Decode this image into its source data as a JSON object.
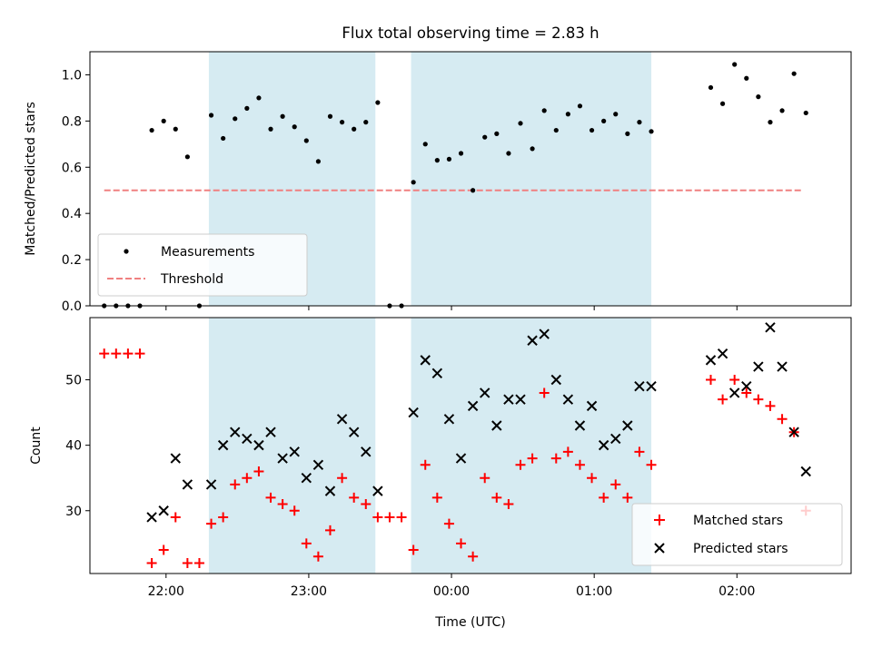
{
  "title": "Flux total observing time = 2.83 h",
  "colors": {
    "shade": "#add8e6",
    "measurement": "#000000",
    "threshold": "#f08080",
    "matched": "#ff0000",
    "predicted": "#000000"
  },
  "chart_data": [
    {
      "type": "scatter",
      "name": "ratio-panel",
      "ylabel": "Matched/Predicted stars",
      "xlim": [
        "21:28",
        "02:48"
      ],
      "ylim": [
        0,
        1.1
      ],
      "yticks": [
        "0.0",
        "0.2",
        "0.4",
        "0.6",
        "0.8",
        "1.0"
      ],
      "legend_position": "lower-left",
      "shaded_intervals": [
        [
          "22:18",
          "23:28"
        ],
        [
          "23:43",
          "01:24"
        ]
      ],
      "threshold": {
        "name": "Threshold",
        "value": 0.5,
        "x_range": [
          "21:34",
          "02:28"
        ]
      },
      "series": [
        {
          "name": "Measurements",
          "points": [
            [
              "21:34",
              0
            ],
            [
              "21:39",
              0
            ],
            [
              "21:44",
              0
            ],
            [
              "21:49",
              0
            ],
            [
              "21:54",
              0.76
            ],
            [
              "21:59",
              0.8
            ],
            [
              "22:04",
              0.765
            ],
            [
              "22:09",
              0.645
            ],
            [
              "22:14",
              0
            ],
            [
              "22:19",
              0.825
            ],
            [
              "22:24",
              0.725
            ],
            [
              "22:29",
              0.81
            ],
            [
              "22:34",
              0.855
            ],
            [
              "22:39",
              0.9
            ],
            [
              "22:44",
              0.765
            ],
            [
              "22:49",
              0.82
            ],
            [
              "22:54",
              0.775
            ],
            [
              "22:59",
              0.715
            ],
            [
              "23:04",
              0.625
            ],
            [
              "23:09",
              0.82
            ],
            [
              "23:14",
              0.795
            ],
            [
              "23:19",
              0.765
            ],
            [
              "23:24",
              0.795
            ],
            [
              "23:29",
              0.88
            ],
            [
              "23:34",
              0
            ],
            [
              "23:39",
              0
            ],
            [
              "23:44",
              0.535
            ],
            [
              "23:49",
              0.7
            ],
            [
              "23:54",
              0.63
            ],
            [
              "23:59",
              0.635
            ],
            [
              "00:04",
              0.66
            ],
            [
              "00:09",
              0.5
            ],
            [
              "00:14",
              0.73
            ],
            [
              "00:19",
              0.745
            ],
            [
              "00:24",
              0.66
            ],
            [
              "00:29",
              0.79
            ],
            [
              "00:34",
              0.68
            ],
            [
              "00:39",
              0.845
            ],
            [
              "00:44",
              0.76
            ],
            [
              "00:49",
              0.83
            ],
            [
              "00:54",
              0.865
            ],
            [
              "00:59",
              0.76
            ],
            [
              "01:04",
              0.8
            ],
            [
              "01:09",
              0.83
            ],
            [
              "01:14",
              0.745
            ],
            [
              "01:19",
              0.795
            ],
            [
              "01:24",
              0.755
            ],
            [
              "01:49",
              0.945
            ],
            [
              "01:54",
              0.875
            ],
            [
              "01:59",
              1.045
            ],
            [
              "02:04",
              0.985
            ],
            [
              "02:09",
              0.905
            ],
            [
              "02:14",
              0.795
            ],
            [
              "02:19",
              0.845
            ],
            [
              "02:24",
              1.005
            ],
            [
              "02:29",
              0.835
            ]
          ]
        }
      ]
    },
    {
      "type": "scatter",
      "name": "count-panel",
      "xlabel": "Time (UTC)",
      "ylabel": "Count",
      "xlim": [
        "21:28",
        "02:48"
      ],
      "xticks": [
        "22:00",
        "23:00",
        "00:00",
        "01:00",
        "02:00"
      ],
      "ylim": [
        20.4,
        59.5
      ],
      "yticks": [
        "30",
        "40",
        "50"
      ],
      "legend_position": "lower-right",
      "shaded_intervals": [
        [
          "22:18",
          "23:28"
        ],
        [
          "23:43",
          "01:24"
        ]
      ],
      "series": [
        {
          "name": "Matched stars",
          "marker": "plus",
          "points": [
            [
              "21:34",
              54
            ],
            [
              "21:39",
              54
            ],
            [
              "21:44",
              54
            ],
            [
              "21:49",
              54
            ],
            [
              "21:54",
              22
            ],
            [
              "21:59",
              24
            ],
            [
              "22:04",
              29
            ],
            [
              "22:09",
              22
            ],
            [
              "22:14",
              22
            ],
            [
              "22:19",
              28
            ],
            [
              "22:24",
              29
            ],
            [
              "22:29",
              34
            ],
            [
              "22:34",
              35
            ],
            [
              "22:39",
              36
            ],
            [
              "22:44",
              32
            ],
            [
              "22:49",
              31
            ],
            [
              "22:54",
              30
            ],
            [
              "22:59",
              25
            ],
            [
              "23:04",
              23
            ],
            [
              "23:09",
              27
            ],
            [
              "23:14",
              35
            ],
            [
              "23:19",
              32
            ],
            [
              "23:24",
              31
            ],
            [
              "23:29",
              29
            ],
            [
              "23:34",
              29
            ],
            [
              "23:39",
              29
            ],
            [
              "23:44",
              24
            ],
            [
              "23:49",
              37
            ],
            [
              "23:54",
              32
            ],
            [
              "23:59",
              28
            ],
            [
              "00:04",
              25
            ],
            [
              "00:09",
              23
            ],
            [
              "00:14",
              35
            ],
            [
              "00:19",
              32
            ],
            [
              "00:24",
              31
            ],
            [
              "00:29",
              37
            ],
            [
              "00:34",
              38
            ],
            [
              "00:39",
              48
            ],
            [
              "00:44",
              38
            ],
            [
              "00:49",
              39
            ],
            [
              "00:54",
              37
            ],
            [
              "00:59",
              35
            ],
            [
              "01:04",
              32
            ],
            [
              "01:09",
              34
            ],
            [
              "01:14",
              32
            ],
            [
              "01:19",
              39
            ],
            [
              "01:24",
              37
            ],
            [
              "01:49",
              50
            ],
            [
              "01:54",
              47
            ],
            [
              "01:59",
              50
            ],
            [
              "02:04",
              48
            ],
            [
              "02:09",
              47
            ],
            [
              "02:14",
              46
            ],
            [
              "02:19",
              44
            ],
            [
              "02:24",
              42
            ],
            [
              "02:29",
              30
            ]
          ]
        },
        {
          "name": "Predicted stars",
          "marker": "x",
          "points": [
            [
              "21:54",
              29
            ],
            [
              "21:59",
              30
            ],
            [
              "22:04",
              38
            ],
            [
              "22:09",
              34
            ],
            [
              "22:19",
              34
            ],
            [
              "22:24",
              40
            ],
            [
              "22:29",
              42
            ],
            [
              "22:34",
              41
            ],
            [
              "22:39",
              40
            ],
            [
              "22:44",
              42
            ],
            [
              "22:49",
              38
            ],
            [
              "22:54",
              39
            ],
            [
              "22:59",
              35
            ],
            [
              "23:04",
              37
            ],
            [
              "23:09",
              33
            ],
            [
              "23:14",
              44
            ],
            [
              "23:19",
              42
            ],
            [
              "23:24",
              39
            ],
            [
              "23:29",
              33
            ],
            [
              "23:44",
              45
            ],
            [
              "23:49",
              53
            ],
            [
              "23:54",
              51
            ],
            [
              "23:59",
              44
            ],
            [
              "00:04",
              38
            ],
            [
              "00:09",
              46
            ],
            [
              "00:14",
              48
            ],
            [
              "00:19",
              43
            ],
            [
              "00:24",
              47
            ],
            [
              "00:29",
              47
            ],
            [
              "00:34",
              56
            ],
            [
              "00:39",
              57
            ],
            [
              "00:44",
              50
            ],
            [
              "00:49",
              47
            ],
            [
              "00:54",
              43
            ],
            [
              "00:59",
              46
            ],
            [
              "01:04",
              40
            ],
            [
              "01:09",
              41
            ],
            [
              "01:14",
              43
            ],
            [
              "01:19",
              49
            ],
            [
              "01:24",
              49
            ],
            [
              "01:49",
              53
            ],
            [
              "01:54",
              54
            ],
            [
              "01:59",
              48
            ],
            [
              "02:04",
              49
            ],
            [
              "02:09",
              52
            ],
            [
              "02:14",
              58
            ],
            [
              "02:19",
              52
            ],
            [
              "02:24",
              42
            ],
            [
              "02:29",
              36
            ]
          ]
        }
      ]
    }
  ]
}
